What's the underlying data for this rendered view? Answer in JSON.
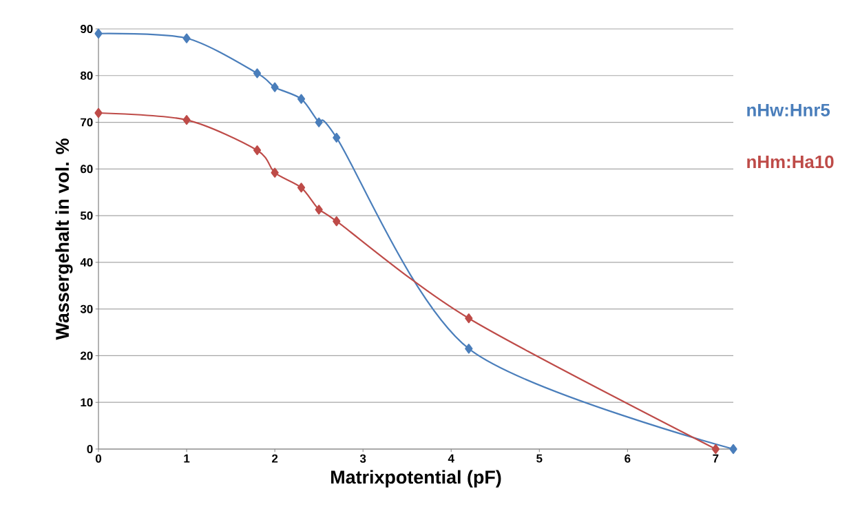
{
  "chart_data": {
    "type": "line",
    "xlabel": "Matrixpotential (pF)",
    "ylabel": "Wassergehalt in vol. %",
    "xlim": [
      0,
      7.2
    ],
    "xticks": [
      0,
      1,
      2,
      3,
      4,
      5,
      6,
      7
    ],
    "ylim": [
      0,
      90
    ],
    "yticks": [
      0,
      10,
      20,
      30,
      40,
      50,
      60,
      70,
      80,
      90
    ],
    "grid": "y",
    "legend": "right",
    "marker": "diamond",
    "line_style": "solid",
    "series": [
      {
        "name": "nHw:Hnr5",
        "color": "#4a7ebb",
        "x": [
          0,
          1,
          1.8,
          2,
          2.3,
          2.5,
          2.7,
          4.2,
          7.2
        ],
        "values": [
          89,
          88,
          80.5,
          77.5,
          75,
          70,
          66.7,
          21.5,
          0
        ]
      },
      {
        "name": "nHm:Ha10",
        "color": "#be4b48",
        "x": [
          0,
          1,
          1.8,
          2,
          2.3,
          2.5,
          2.7,
          4.2,
          7
        ],
        "values": [
          72,
          70.5,
          64,
          59.2,
          56,
          51.3,
          48.8,
          28,
          0
        ]
      }
    ]
  }
}
